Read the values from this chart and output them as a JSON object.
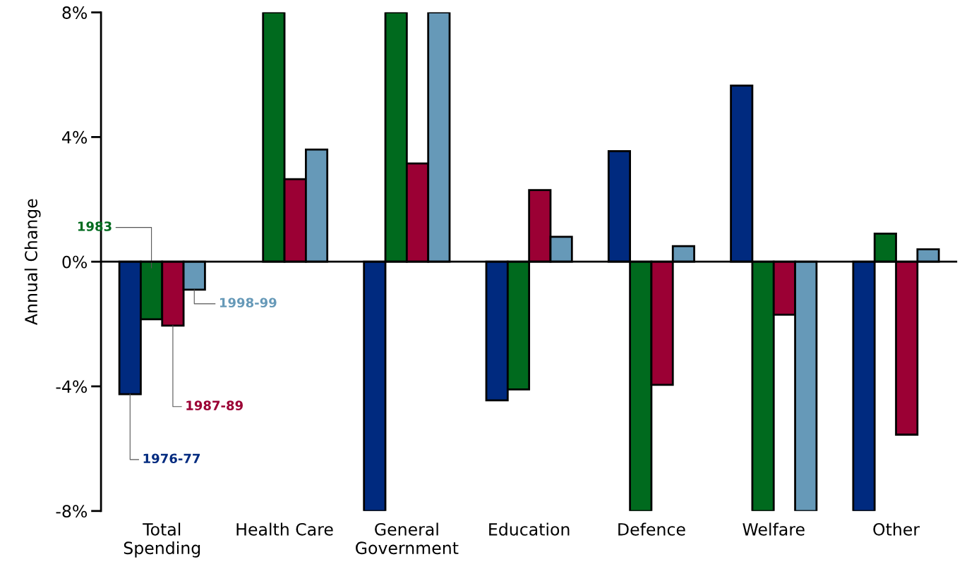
{
  "chart_data": {
    "type": "bar",
    "ylabel": "Annual Change",
    "categories": [
      "Total\nSpending",
      "Health Care",
      "General\nGovernment",
      "Education",
      "Defence",
      "Welfare",
      "Other"
    ],
    "series": [
      {
        "name": "1976-77",
        "color": "#002a7f",
        "values": [
          -4.25,
          null,
          -8,
          -4.45,
          3.55,
          5.65,
          -8
        ]
      },
      {
        "name": "1983",
        "color": "#006a1e",
        "values": [
          -1.85,
          8,
          8,
          -4.1,
          -8,
          -8,
          0.9
        ]
      },
      {
        "name": "1987-89",
        "color": "#9b0034",
        "values": [
          -2.05,
          2.65,
          3.15,
          2.3,
          -3.95,
          -1.7,
          -5.55
        ]
      },
      {
        "name": "1998-99",
        "color": "#6699b8",
        "values": [
          -0.9,
          3.6,
          8,
          0.8,
          0.5,
          -8,
          0.4
        ]
      }
    ],
    "ylim": [
      -8,
      8
    ],
    "yticks": [
      {
        "value": -8,
        "label": "-8%"
      },
      {
        "value": -4,
        "label": "-4%"
      },
      {
        "value": 0,
        "label": "0%"
      },
      {
        "value": 4,
        "label": "4%"
      },
      {
        "value": 8,
        "label": "8%"
      }
    ],
    "legend": false
  }
}
